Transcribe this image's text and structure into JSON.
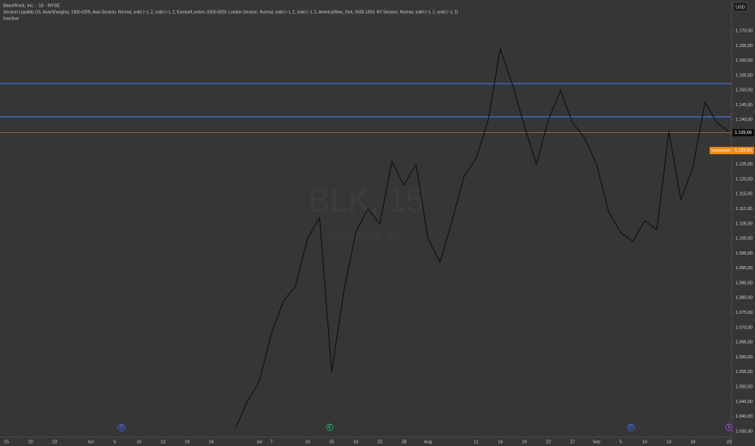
{
  "header": {
    "symbol": "BlackRock, Inc. · 15 · NYSE",
    "indicator": "Session Liquidity (15, Asia/Shanghai, 1900-0259, Asia Session, Normal, solid (─), 2, solid (─), 2, Europe/London, 0300-0929, London Session, Normal, solid (─), 2, solid (─), 2, America/New_York, 0930-1559, NY Session, Normal, solid (─), 2, solid (─), 2)",
    "status": "Inactive"
  },
  "currency": "USD",
  "watermark": {
    "ticker": "BLK, 15",
    "name": "BlackRock, Inc."
  },
  "events": [
    "D",
    "E",
    "D",
    "S"
  ],
  "chart_data": {
    "type": "line",
    "color": "#111111",
    "grid": false,
    "categories": [
      "15",
      null,
      "20",
      null,
      "23",
      null,
      null,
      "Jun",
      null,
      "5",
      null,
      "10",
      null,
      "13",
      null,
      "19",
      null,
      "24",
      null,
      null,
      null,
      "Jul",
      "7",
      null,
      null,
      "10",
      null,
      "15",
      null,
      "18",
      null,
      "23",
      null,
      "28",
      null,
      "Aug",
      null,
      null,
      null,
      "11",
      null,
      "14",
      null,
      "19",
      null,
      "22",
      null,
      "27",
      null,
      "Sep",
      null,
      "5",
      null,
      "10",
      null,
      "13",
      null,
      "18",
      null,
      null,
      "23"
    ],
    "values": [
      null,
      null,
      null,
      null,
      null,
      null,
      null,
      null,
      null,
      null,
      null,
      null,
      null,
      null,
      null,
      null,
      null,
      null,
      null,
      1036,
      1045,
      1052,
      1068,
      1079,
      1084,
      1100,
      1107,
      1055,
      1082,
      1102,
      1110,
      1105,
      1126,
      1118,
      1125,
      1100,
      1092,
      1106,
      1121,
      1127,
      1140,
      1164,
      1152,
      1138,
      1125,
      1140,
      1150,
      1139,
      1134,
      1125,
      1109,
      1102,
      1099,
      1106,
      1103,
      1136,
      1113,
      1124,
      1146,
      1139,
      1136
    ],
    "ylim": [
      1032.8,
      1180.4
    ],
    "yticks": [
      {
        "value": 1035,
        "label": "1.035,00"
      },
      {
        "value": 1040,
        "label": "1.040,00"
      },
      {
        "value": 1045,
        "label": "1.045,00"
      },
      {
        "value": 1050,
        "label": "1.050,00"
      },
      {
        "value": 1055,
        "label": "1.055,00"
      },
      {
        "value": 1060,
        "label": "1.060,00"
      },
      {
        "value": 1065,
        "label": "1.065,00"
      },
      {
        "value": 1070,
        "label": "1.070,00"
      },
      {
        "value": 1075,
        "label": "1.075,00"
      },
      {
        "value": 1080,
        "label": "1.080,00"
      },
      {
        "value": 1085,
        "label": "1.085,00"
      },
      {
        "value": 1090,
        "label": "1.090,00"
      },
      {
        "value": 1095,
        "label": "1.095,00"
      },
      {
        "value": 1100,
        "label": "1.100,00"
      },
      {
        "value": 1105,
        "label": "1.105,00"
      },
      {
        "value": 1110,
        "label": "1.110,00"
      },
      {
        "value": 1115,
        "label": "1.115,00"
      },
      {
        "value": 1120,
        "label": "1.120,00"
      },
      {
        "value": 1125,
        "label": "1.125,00"
      },
      {
        "value": 1130,
        "label": "1.130,00"
      },
      {
        "value": 1135,
        "label": "1.135,00"
      },
      {
        "value": 1140,
        "label": "1.140,00"
      },
      {
        "value": 1145,
        "label": "1.145,00"
      },
      {
        "value": 1150,
        "label": "1.150,00"
      },
      {
        "value": 1155,
        "label": "1.155,00"
      },
      {
        "value": 1160,
        "label": "1.160,00"
      },
      {
        "value": 1165,
        "label": "1.165,00"
      },
      {
        "value": 1170,
        "label": "1.170,00"
      }
    ],
    "levels": [
      {
        "value": 1152.2,
        "color": "#3f72dc"
      },
      {
        "value": 1141,
        "color": "#3f72dc"
      }
    ],
    "last_price": {
      "value": 1135.66,
      "label": "1.135,66",
      "color": "#b8862e"
    },
    "premarket": {
      "name": "Vorbörslich",
      "value": 1129.65,
      "label": "1.129,65",
      "color": "#f08c1a"
    }
  }
}
